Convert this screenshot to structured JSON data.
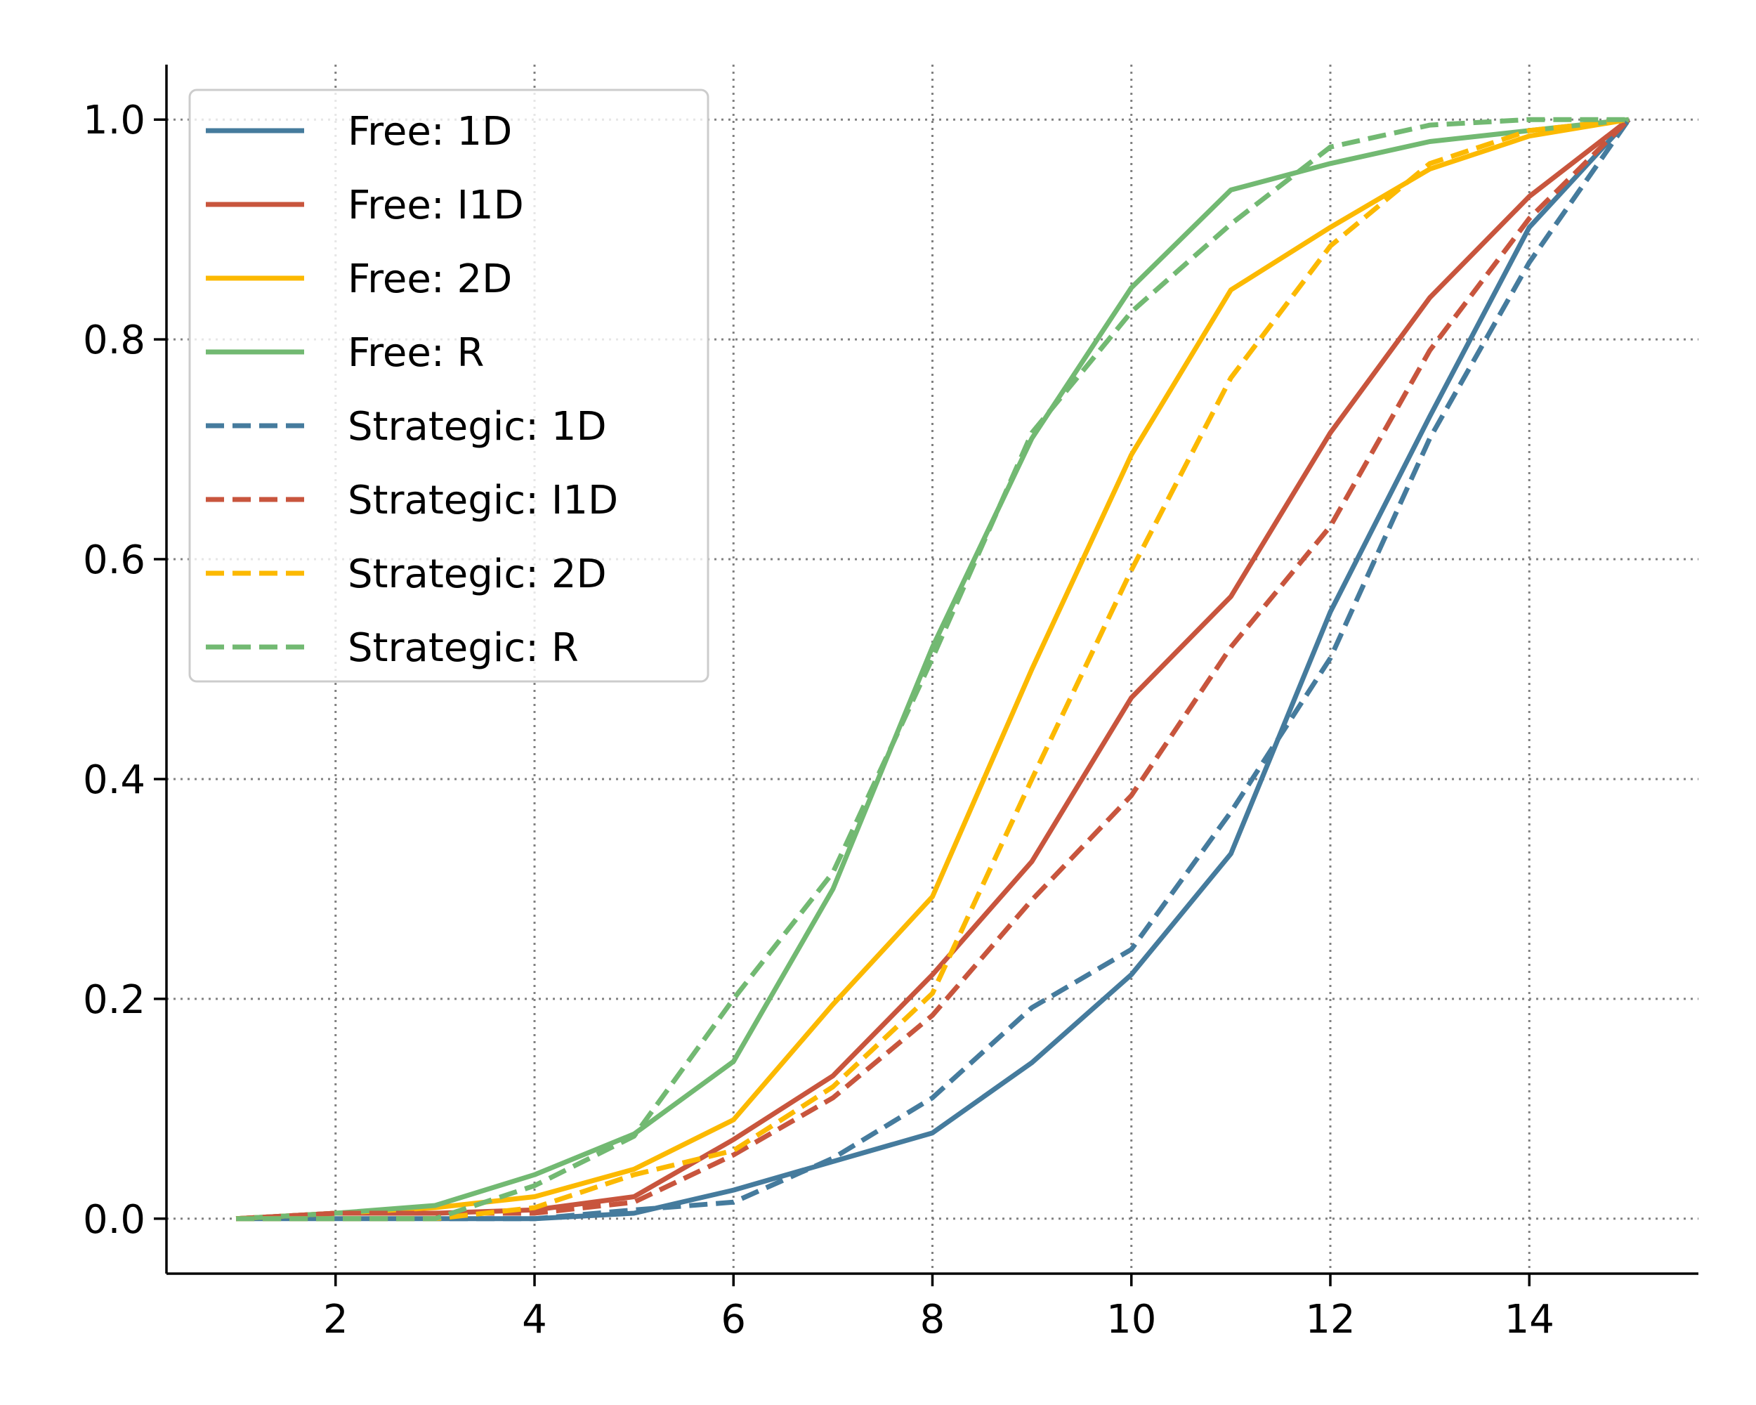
{
  "chart_data": {
    "type": "line",
    "title": "",
    "xlabel": "",
    "ylabel": "",
    "xlim": [
      0.3,
      15.7
    ],
    "ylim": [
      -0.05,
      1.05
    ],
    "xticks": [
      2,
      4,
      6,
      8,
      10,
      12,
      14
    ],
    "yticks": [
      0.0,
      0.2,
      0.4,
      0.6,
      0.8,
      1.0
    ],
    "grid": true,
    "legend_position": "top-left",
    "x": [
      1,
      2,
      3,
      4,
      5,
      6,
      7,
      8,
      9,
      10,
      11,
      12,
      13,
      14,
      15
    ],
    "series": [
      {
        "name": "Free: 1D",
        "color": "#457b9d",
        "style": "solid",
        "values": [
          0.0,
          0.0,
          0.0,
          0.0,
          0.005,
          0.026,
          0.052,
          0.078,
          0.142,
          0.222,
          0.332,
          0.552,
          0.73,
          0.902,
          1.0
        ]
      },
      {
        "name": "Free: I1D",
        "color": "#c8553d",
        "style": "solid",
        "values": [
          0.0,
          0.005,
          0.005,
          0.008,
          0.02,
          0.072,
          0.13,
          0.222,
          0.325,
          0.474,
          0.566,
          0.715,
          0.838,
          0.93,
          1.0
        ]
      },
      {
        "name": "Free: 2D",
        "color": "#fcb900",
        "style": "solid",
        "values": [
          0.0,
          0.005,
          0.01,
          0.02,
          0.045,
          0.09,
          0.195,
          0.293,
          0.5,
          0.695,
          0.845,
          0.902,
          0.955,
          0.985,
          1.0
        ]
      },
      {
        "name": "Free: R",
        "color": "#72b972",
        "style": "solid",
        "values": [
          0.0,
          0.005,
          0.012,
          0.04,
          0.077,
          0.143,
          0.3,
          0.52,
          0.71,
          0.847,
          0.936,
          0.96,
          0.98,
          0.99,
          1.0
        ]
      },
      {
        "name": "Strategic: 1D",
        "color": "#457b9d",
        "style": "dashed",
        "values": [
          0.0,
          0.0,
          0.0,
          0.0,
          0.008,
          0.015,
          0.055,
          0.11,
          0.192,
          0.245,
          0.37,
          0.51,
          0.71,
          0.87,
          1.0
        ]
      },
      {
        "name": "Strategic: I1D",
        "color": "#c8553d",
        "style": "dashed",
        "values": [
          0.0,
          0.005,
          0.005,
          0.005,
          0.015,
          0.058,
          0.11,
          0.185,
          0.29,
          0.385,
          0.52,
          0.63,
          0.79,
          0.91,
          1.0
        ]
      },
      {
        "name": "Strategic: 2D",
        "color": "#fcb900",
        "style": "dashed",
        "values": [
          0.0,
          0.0,
          0.0,
          0.01,
          0.04,
          0.062,
          0.12,
          0.205,
          0.4,
          0.59,
          0.765,
          0.885,
          0.96,
          0.99,
          1.0
        ]
      },
      {
        "name": "Strategic: R",
        "color": "#72b972",
        "style": "dashed",
        "values": [
          0.0,
          0.0,
          0.0,
          0.03,
          0.075,
          0.2,
          0.315,
          0.51,
          0.715,
          0.825,
          0.905,
          0.975,
          0.995,
          1.0,
          1.0
        ]
      }
    ]
  }
}
